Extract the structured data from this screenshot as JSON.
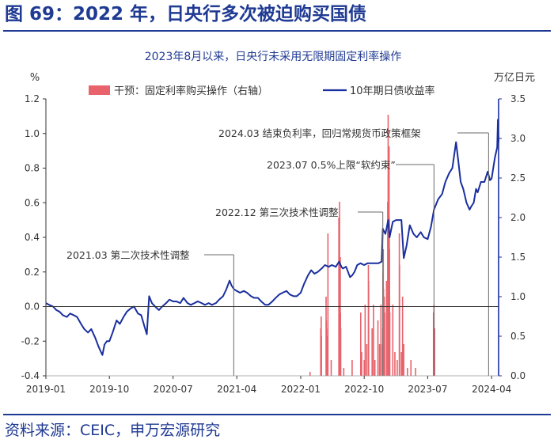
{
  "figure": {
    "title": "图 69：2022 年，日央行多次被迫购买国债",
    "source": "资料来源：CEIC，申万宏源研究"
  },
  "chart_data": {
    "type": "line",
    "title": "2023年8月以来，日央行未采用无限期固定利率操作",
    "ylabel_left": "%",
    "ylabel_right": "万亿日元",
    "ylim_left": [
      -0.4,
      1.2
    ],
    "ylim_right": [
      0,
      3.5
    ],
    "xlim": [
      "2019-01-01",
      "2024-05-01"
    ],
    "yticks_left": [
      "-0.4",
      "-0.2",
      "0.0",
      "0.2",
      "0.4",
      "0.6",
      "0.8",
      "1.0",
      "1.2"
    ],
    "yticks_right": [
      "0.0",
      "0.5",
      "1.0",
      "1.5",
      "2.0",
      "2.5",
      "3.0",
      "3.5"
    ],
    "xticks": [
      {
        "date": "2019-01-01",
        "label": "2019-01"
      },
      {
        "date": "2019-10-01",
        "label": "2019-10"
      },
      {
        "date": "2020-07-01",
        "label": "2020-07"
      },
      {
        "date": "2021-04-01",
        "label": "2021-04"
      },
      {
        "date": "2022-01-01",
        "label": "2022-01"
      },
      {
        "date": "2022-10-01",
        "label": "2022-10"
      },
      {
        "date": "2023-07-01",
        "label": "2023-07"
      },
      {
        "date": "2024-04-01",
        "label": "2024-04"
      }
    ],
    "legend": [
      "干预：固定利率购买操作（右轴）",
      "10年期日债收益率"
    ],
    "legend_position": "top",
    "colors": {
      "bars": "#e8636c",
      "line": "#1a2f9e",
      "axis_right": "#1a2f9e",
      "annotation": "#555555"
    },
    "series": [
      {
        "name": "10年期日债收益率",
        "kind": "line",
        "axis": "left",
        "points": [
          [
            "2019-01-01",
            0.02
          ],
          [
            "2019-01-15",
            0.01
          ],
          [
            "2019-02-01",
            0.0
          ],
          [
            "2019-02-15",
            -0.02
          ],
          [
            "2019-03-01",
            -0.03
          ],
          [
            "2019-03-15",
            -0.05
          ],
          [
            "2019-04-01",
            -0.06
          ],
          [
            "2019-04-15",
            -0.04
          ],
          [
            "2019-05-01",
            -0.05
          ],
          [
            "2019-05-15",
            -0.06
          ],
          [
            "2019-06-01",
            -0.1
          ],
          [
            "2019-06-15",
            -0.13
          ],
          [
            "2019-07-01",
            -0.15
          ],
          [
            "2019-07-15",
            -0.13
          ],
          [
            "2019-08-01",
            -0.18
          ],
          [
            "2019-08-15",
            -0.23
          ],
          [
            "2019-08-25",
            -0.26
          ],
          [
            "2019-09-01",
            -0.28
          ],
          [
            "2019-09-10",
            -0.22
          ],
          [
            "2019-09-20",
            -0.2
          ],
          [
            "2019-10-01",
            -0.2
          ],
          [
            "2019-10-15",
            -0.15
          ],
          [
            "2019-11-01",
            -0.08
          ],
          [
            "2019-11-15",
            -0.1
          ],
          [
            "2019-12-01",
            -0.06
          ],
          [
            "2019-12-15",
            -0.03
          ],
          [
            "2020-01-01",
            -0.01
          ],
          [
            "2020-01-15",
            0.0
          ],
          [
            "2020-02-01",
            -0.04
          ],
          [
            "2020-02-15",
            -0.05
          ],
          [
            "2020-03-01",
            -0.12
          ],
          [
            "2020-03-10",
            -0.16
          ],
          [
            "2020-03-20",
            0.06
          ],
          [
            "2020-04-01",
            0.02
          ],
          [
            "2020-04-15",
            0.0
          ],
          [
            "2020-05-01",
            -0.02
          ],
          [
            "2020-05-15",
            0.0
          ],
          [
            "2020-06-01",
            0.02
          ],
          [
            "2020-06-15",
            0.04
          ],
          [
            "2020-07-01",
            0.03
          ],
          [
            "2020-07-15",
            0.03
          ],
          [
            "2020-08-01",
            0.02
          ],
          [
            "2020-08-15",
            0.05
          ],
          [
            "2020-09-01",
            0.02
          ],
          [
            "2020-09-15",
            0.01
          ],
          [
            "2020-10-01",
            0.02
          ],
          [
            "2020-10-15",
            0.03
          ],
          [
            "2020-11-01",
            0.02
          ],
          [
            "2020-11-15",
            0.01
          ],
          [
            "2020-12-01",
            0.02
          ],
          [
            "2020-12-15",
            0.01
          ],
          [
            "2021-01-01",
            0.02
          ],
          [
            "2021-01-15",
            0.04
          ],
          [
            "2021-02-01",
            0.06
          ],
          [
            "2021-02-15",
            0.1
          ],
          [
            "2021-03-01",
            0.15
          ],
          [
            "2021-03-10",
            0.12
          ],
          [
            "2021-03-20",
            0.1
          ],
          [
            "2021-04-01",
            0.09
          ],
          [
            "2021-04-15",
            0.08
          ],
          [
            "2021-05-01",
            0.09
          ],
          [
            "2021-05-15",
            0.08
          ],
          [
            "2021-06-01",
            0.06
          ],
          [
            "2021-06-15",
            0.05
          ],
          [
            "2021-07-01",
            0.05
          ],
          [
            "2021-07-15",
            0.03
          ],
          [
            "2021-08-01",
            0.01
          ],
          [
            "2021-08-15",
            0.01
          ],
          [
            "2021-09-01",
            0.03
          ],
          [
            "2021-09-15",
            0.05
          ],
          [
            "2021-10-01",
            0.07
          ],
          [
            "2021-10-15",
            0.08
          ],
          [
            "2021-11-01",
            0.09
          ],
          [
            "2021-11-15",
            0.07
          ],
          [
            "2021-12-01",
            0.06
          ],
          [
            "2021-12-15",
            0.06
          ],
          [
            "2022-01-01",
            0.08
          ],
          [
            "2022-01-15",
            0.13
          ],
          [
            "2022-02-01",
            0.18
          ],
          [
            "2022-02-15",
            0.21
          ],
          [
            "2022-03-01",
            0.19
          ],
          [
            "2022-03-15",
            0.2
          ],
          [
            "2022-04-01",
            0.22
          ],
          [
            "2022-04-15",
            0.24
          ],
          [
            "2022-05-01",
            0.23
          ],
          [
            "2022-05-15",
            0.24
          ],
          [
            "2022-06-01",
            0.23
          ],
          [
            "2022-06-15",
            0.26
          ],
          [
            "2022-06-25",
            0.23
          ],
          [
            "2022-07-01",
            0.22
          ],
          [
            "2022-07-15",
            0.23
          ],
          [
            "2022-08-01",
            0.17
          ],
          [
            "2022-08-10",
            0.18
          ],
          [
            "2022-08-20",
            0.2
          ],
          [
            "2022-09-01",
            0.24
          ],
          [
            "2022-09-15",
            0.25
          ],
          [
            "2022-10-01",
            0.24
          ],
          [
            "2022-10-15",
            0.25
          ],
          [
            "2022-11-01",
            0.25
          ],
          [
            "2022-11-15",
            0.25
          ],
          [
            "2022-12-01",
            0.25
          ],
          [
            "2022-12-15",
            0.26
          ],
          [
            "2022-12-20",
            0.45
          ],
          [
            "2022-12-31",
            0.42
          ],
          [
            "2023-01-05",
            0.45
          ],
          [
            "2023-01-12",
            0.5
          ],
          [
            "2023-01-18",
            0.4
          ],
          [
            "2023-02-01",
            0.49
          ],
          [
            "2023-02-15",
            0.5
          ],
          [
            "2023-03-01",
            0.5
          ],
          [
            "2023-03-10",
            0.5
          ],
          [
            "2023-03-20",
            0.28
          ],
          [
            "2023-04-01",
            0.35
          ],
          [
            "2023-04-15",
            0.47
          ],
          [
            "2023-05-01",
            0.42
          ],
          [
            "2023-05-15",
            0.4
          ],
          [
            "2023-06-01",
            0.43
          ],
          [
            "2023-06-15",
            0.4
          ],
          [
            "2023-07-01",
            0.39
          ],
          [
            "2023-07-15",
            0.46
          ],
          [
            "2023-07-28",
            0.56
          ],
          [
            "2023-08-15",
            0.62
          ],
          [
            "2023-09-01",
            0.65
          ],
          [
            "2023-09-15",
            0.72
          ],
          [
            "2023-10-01",
            0.77
          ],
          [
            "2023-10-15",
            0.8
          ],
          [
            "2023-10-31",
            0.95
          ],
          [
            "2023-11-08",
            0.86
          ],
          [
            "2023-11-20",
            0.72
          ],
          [
            "2023-12-01",
            0.68
          ],
          [
            "2023-12-15",
            0.6
          ],
          [
            "2023-12-28",
            0.56
          ],
          [
            "2024-01-05",
            0.58
          ],
          [
            "2024-01-15",
            0.6
          ],
          [
            "2024-01-25",
            0.68
          ],
          [
            "2024-02-01",
            0.66
          ],
          [
            "2024-02-15",
            0.72
          ],
          [
            "2024-03-01",
            0.72
          ],
          [
            "2024-03-15",
            0.78
          ],
          [
            "2024-03-25",
            0.73
          ],
          [
            "2024-04-01",
            0.74
          ],
          [
            "2024-04-15",
            0.86
          ],
          [
            "2024-04-25",
            0.92
          ],
          [
            "2024-04-28",
            1.08
          ],
          [
            "2024-05-01",
            0.95
          ]
        ]
      },
      {
        "name": "干预：固定利率购买操作（右轴）",
        "kind": "bar",
        "axis": "right",
        "points": [
          [
            "2022-02-10",
            0.05
          ],
          [
            "2022-03-28",
            0.6
          ],
          [
            "2022-03-29",
            0.4
          ],
          [
            "2022-03-30",
            0.75
          ],
          [
            "2022-03-31",
            0.5
          ],
          [
            "2022-04-20",
            1.0
          ],
          [
            "2022-04-21",
            0.7
          ],
          [
            "2022-04-26",
            0.5
          ],
          [
            "2022-04-27",
            0.6
          ],
          [
            "2022-04-28",
            1.8
          ],
          [
            "2022-05-12",
            0.2
          ],
          [
            "2022-06-14",
            2.0
          ],
          [
            "2022-06-15",
            1.2
          ],
          [
            "2022-06-16",
            1.4
          ],
          [
            "2022-06-17",
            2.2
          ],
          [
            "2022-06-20",
            1.5
          ],
          [
            "2022-06-21",
            0.8
          ],
          [
            "2022-06-22",
            0.6
          ],
          [
            "2022-07-05",
            0.1
          ],
          [
            "2022-08-10",
            0.2
          ],
          [
            "2022-09-16",
            0.8
          ],
          [
            "2022-09-20",
            0.3
          ],
          [
            "2022-10-01",
            0.2
          ],
          [
            "2022-10-05",
            0.9
          ],
          [
            "2022-10-12",
            0.4
          ],
          [
            "2022-10-19",
            1.4
          ],
          [
            "2022-10-20",
            1.2
          ],
          [
            "2022-11-04",
            0.6
          ],
          [
            "2022-11-10",
            0.9
          ],
          [
            "2022-11-16",
            0.2
          ],
          [
            "2022-11-29",
            0.7
          ],
          [
            "2022-12-06",
            0.4
          ],
          [
            "2022-12-12",
            0.9
          ],
          [
            "2022-12-19",
            0.4
          ],
          [
            "2022-12-20",
            0.6
          ],
          [
            "2022-12-21",
            1.3
          ],
          [
            "2022-12-22",
            1.6
          ],
          [
            "2022-12-23",
            1.1
          ],
          [
            "2022-12-26",
            1.0
          ],
          [
            "2022-12-28",
            0.8
          ],
          [
            "2023-01-05",
            1.2
          ],
          [
            "2023-01-10",
            2.2
          ],
          [
            "2023-01-11",
            1.0
          ],
          [
            "2023-01-12",
            3.3
          ],
          [
            "2023-01-13",
            2.5
          ],
          [
            "2023-01-16",
            2.9
          ],
          [
            "2023-01-17",
            2.0
          ],
          [
            "2023-01-18",
            1.6
          ],
          [
            "2023-01-19",
            0.8
          ],
          [
            "2023-02-01",
            0.9
          ],
          [
            "2023-02-10",
            0.3
          ],
          [
            "2023-02-20",
            0.2
          ],
          [
            "2023-03-01",
            1.8
          ],
          [
            "2023-03-02",
            1.4
          ],
          [
            "2023-03-10",
            0.3
          ],
          [
            "2023-03-15",
            1.0
          ],
          [
            "2023-03-20",
            0.4
          ],
          [
            "2023-04-05",
            0.1
          ],
          [
            "2023-04-20",
            0.2
          ],
          [
            "2023-05-10",
            0.1
          ],
          [
            "2023-07-26",
            0.8
          ],
          [
            "2023-07-28",
            0.9
          ],
          [
            "2023-07-31",
            0.6
          ]
        ]
      }
    ],
    "annotations": [
      {
        "text": "2021.03 第二次技术性调整",
        "date": "2021-03-19"
      },
      {
        "text": "2022.12 第三次技术性调整",
        "date": "2022-12-20"
      },
      {
        "text": "2023.07 0.5%上限“软约束”",
        "date": "2023-07-28"
      },
      {
        "text": "2024.03 结束负利率，回归常规货币政策框架",
        "date": "2024-03-19"
      }
    ]
  }
}
